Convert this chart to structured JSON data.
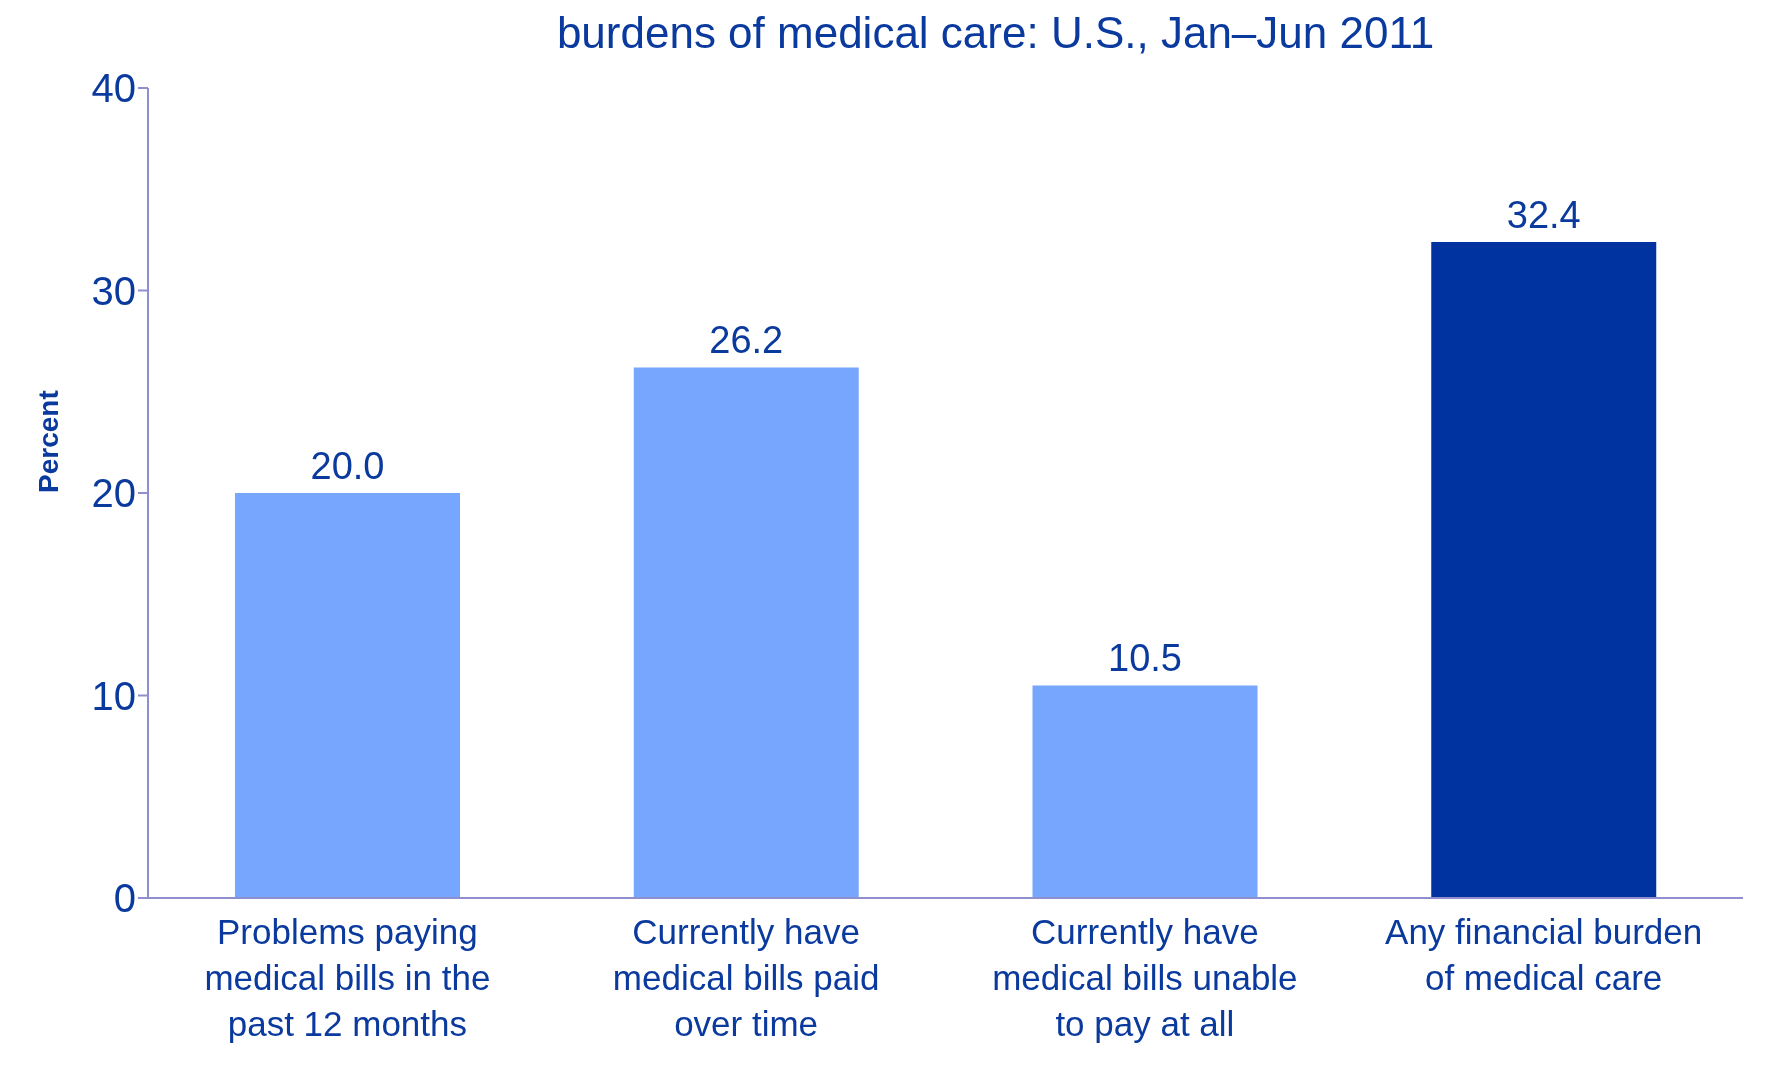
{
  "chart_data": {
    "type": "bar",
    "title": "burdens of medical care: U.S., Jan–Jun 2011",
    "ylabel": "Percent",
    "categories": [
      "Problems paying medical bills in the past 12 months",
      "Currently have medical bills paid over time",
      "Currently have medical bills unable to pay at all",
      "Any financial burden of medical care"
    ],
    "values": [
      20.0,
      26.2,
      10.5,
      32.4
    ],
    "colors": [
      "#77a6ff",
      "#77a6ff",
      "#77a6ff",
      "#0033a0"
    ],
    "value_labels": [
      "20.0",
      "26.2",
      "10.5",
      "32.4"
    ],
    "ylim": [
      0,
      40
    ],
    "yticks": [
      0,
      10,
      20,
      30,
      40
    ],
    "grid": false,
    "legend": false
  }
}
